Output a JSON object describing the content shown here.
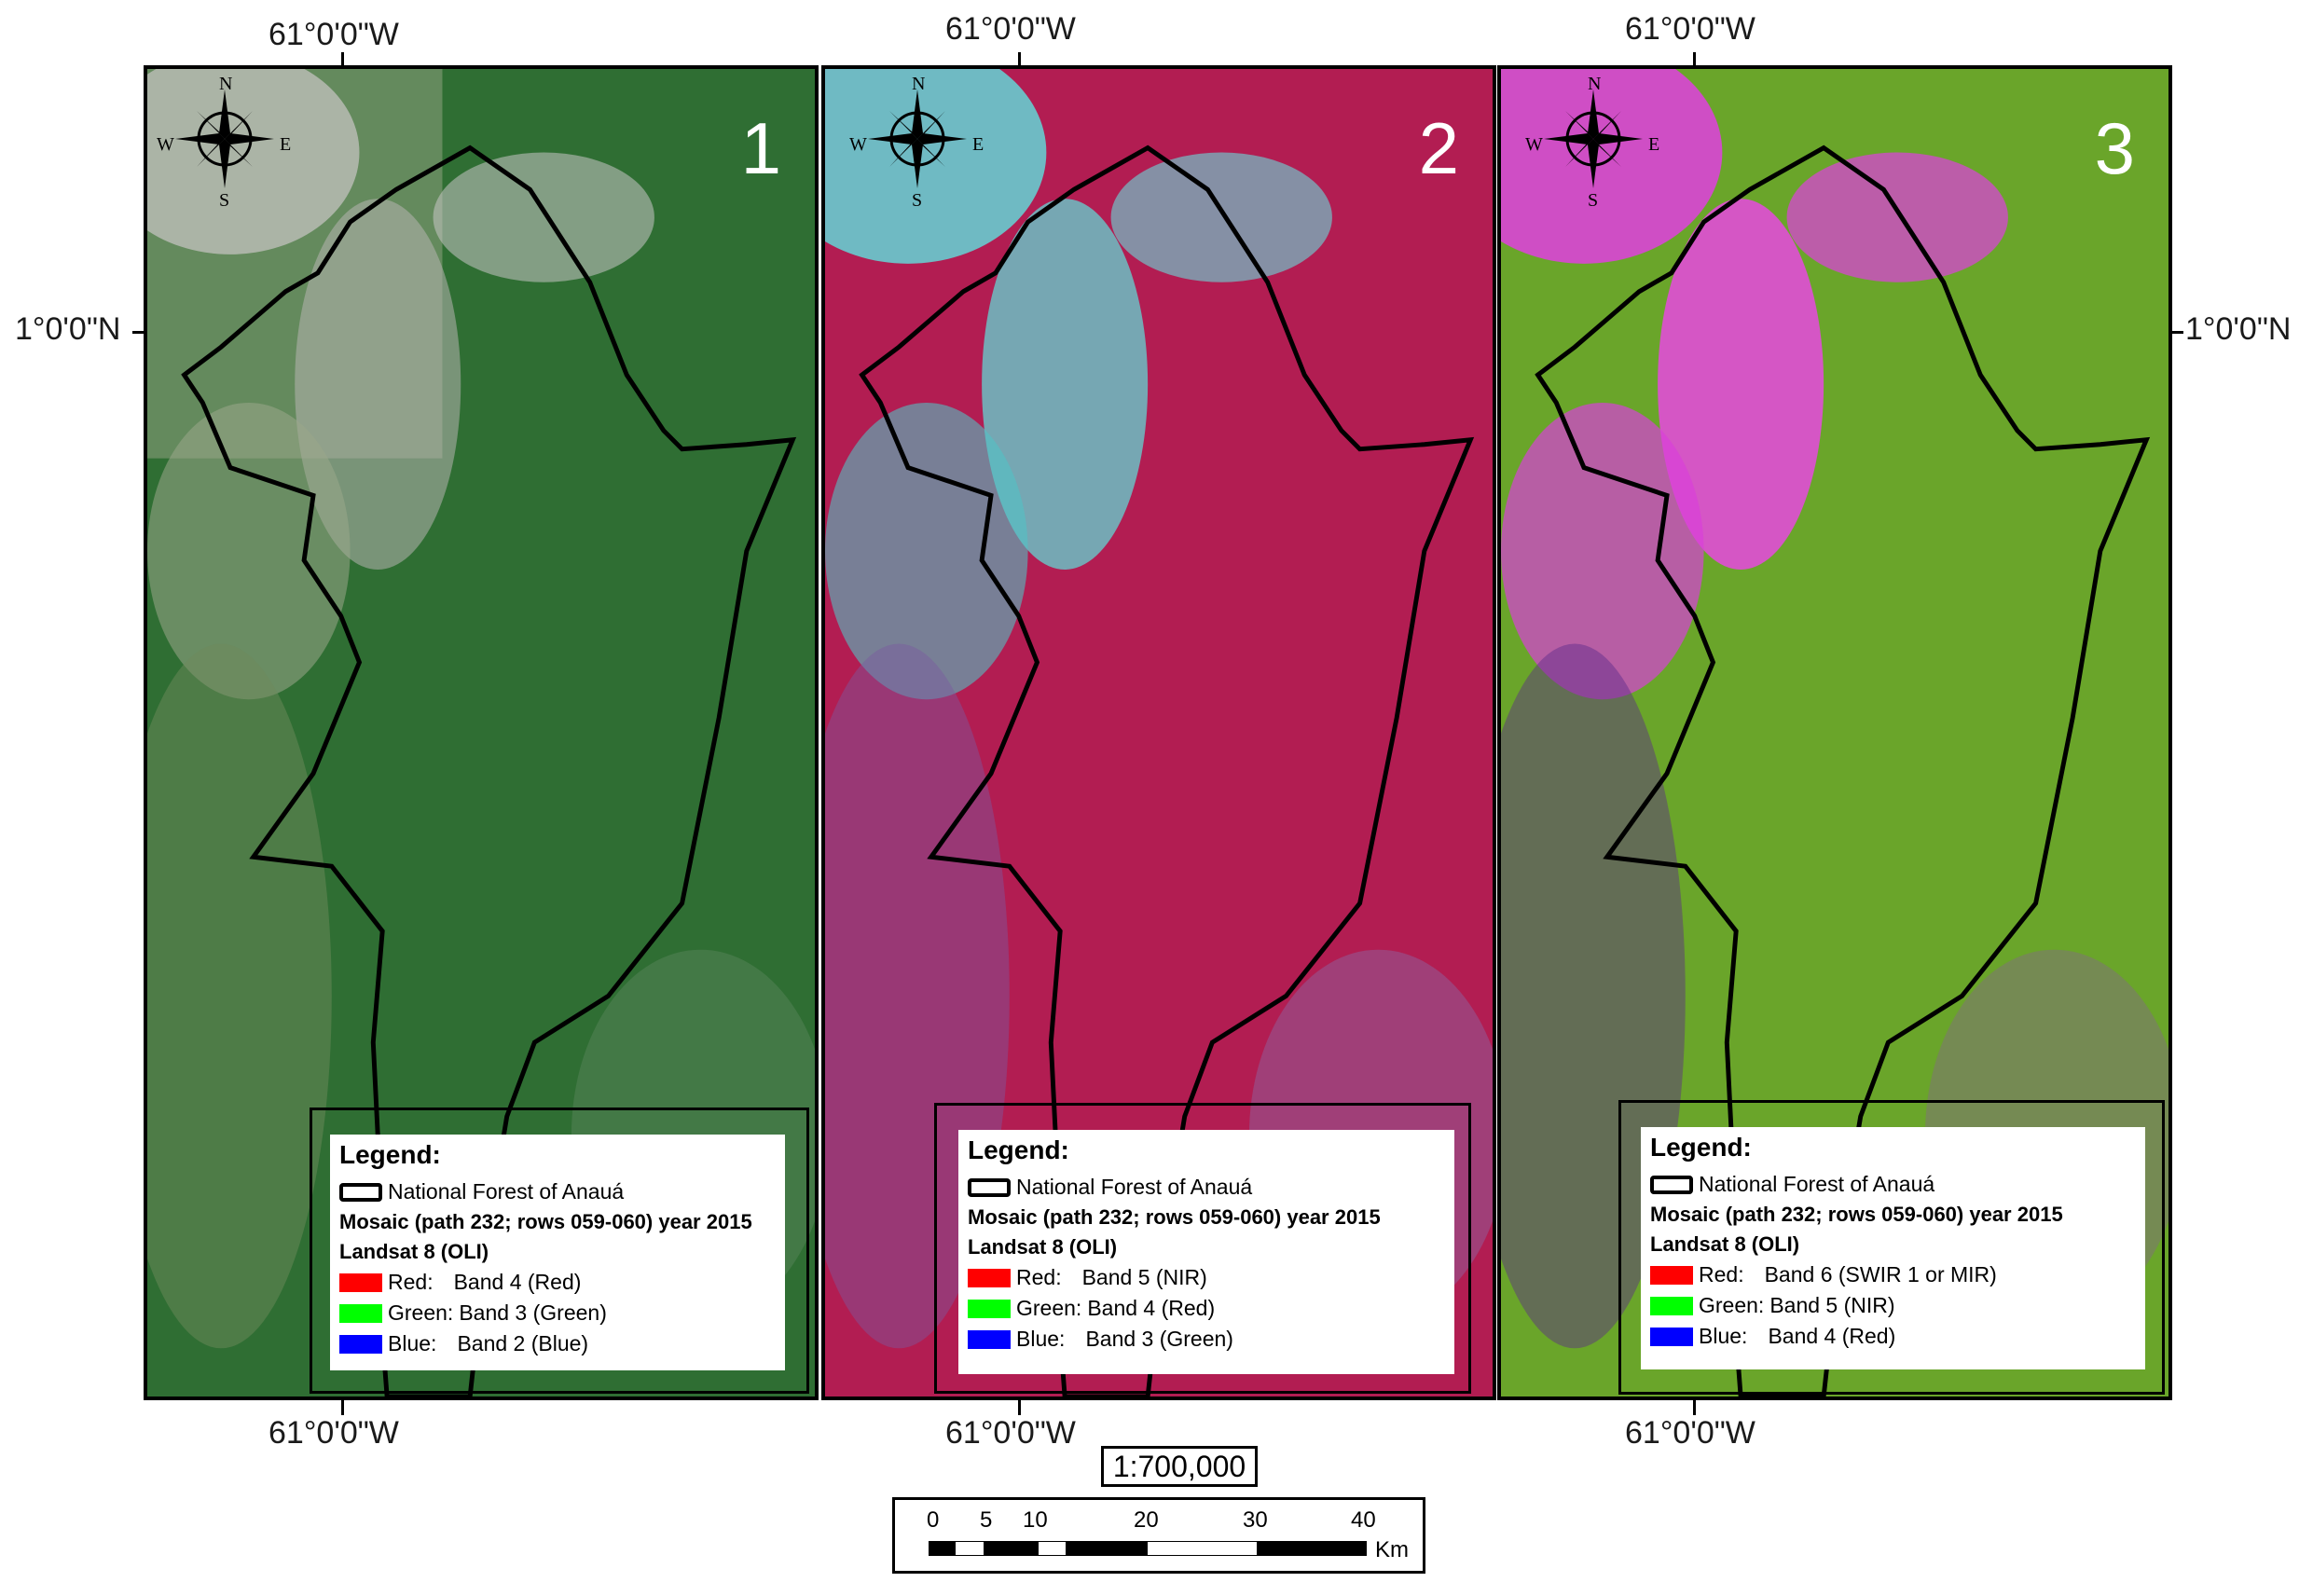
{
  "coordinates": {
    "lon_label": "61°0'0\"W",
    "lat_label": "1°0'0\"N"
  },
  "compass": {
    "n": "N",
    "s": "S",
    "e": "E",
    "w": "W"
  },
  "panels": [
    {
      "number": "1",
      "bg_color": "#2f6e33",
      "legend": {
        "title": "Legend:",
        "boundary": "National Forest of Anauá",
        "mosaic": "Mosaic (path 232; rows 059-060) year 2015",
        "sensor": "Landsat 8 (OLI)",
        "bands": [
          {
            "label": "Red:",
            "band": "Band 4 (Red)",
            "color": "#ff0000"
          },
          {
            "label": "Green:",
            "band": "Band 3 (Green)",
            "color": "#00ff00"
          },
          {
            "label": "Blue:",
            "band": "Band 2 (Blue)",
            "color": "#0000ff"
          }
        ]
      }
    },
    {
      "number": "2",
      "bg_color": "#b21d52",
      "legend": {
        "title": "Legend:",
        "boundary": "National Forest of Anauá",
        "mosaic": "Mosaic (path 232; rows 059-060) year 2015",
        "sensor": "Landsat 8 (OLI)",
        "bands": [
          {
            "label": "Red:",
            "band": "Band 5 (NIR)",
            "color": "#ff0000"
          },
          {
            "label": "Green:",
            "band": "Band 4 (Red)",
            "color": "#00ff00"
          },
          {
            "label": "Blue:",
            "band": "Band 3 (Green)",
            "color": "#0000ff"
          }
        ]
      }
    },
    {
      "number": "3",
      "bg_color": "#6aa52a",
      "legend": {
        "title": "Legend:",
        "boundary": "National Forest of Anauá",
        "mosaic": "Mosaic (path 232; rows 059-060) year 2015",
        "sensor": "Landsat 8 (OLI)",
        "bands": [
          {
            "label": "Red:",
            "band": "Band 6 (SWIR 1 or MIR)",
            "color": "#ff0000"
          },
          {
            "label": "Green:",
            "band": "Band 5 (NIR)",
            "color": "#00ff00"
          },
          {
            "label": "Blue:",
            "band": "Band 4 (Red)",
            "color": "#0000ff"
          }
        ]
      }
    }
  ],
  "scale": {
    "ratio": "1:700,000",
    "ticks": [
      "0",
      "5",
      "10",
      "20",
      "30",
      "40"
    ],
    "unit": "Km"
  }
}
